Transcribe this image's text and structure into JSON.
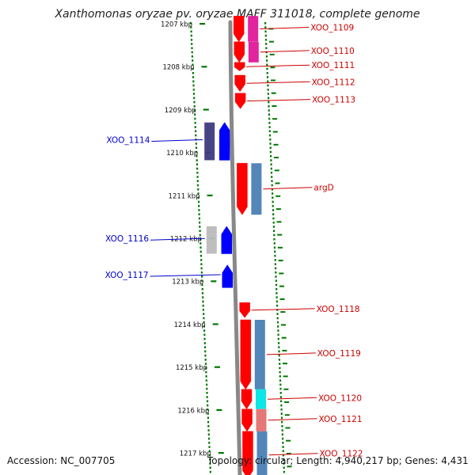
{
  "title": "Xanthomonas oryzae pv. oryzae MAFF 311018, complete genome",
  "accession": "Accession: NC_007705",
  "summary": "Topology: circular; Length: 4,940,217 bp; Genes: 4,431",
  "colors": {
    "forward_strand": "#ff0000",
    "reverse_strand": "#0000ff",
    "backbone": "#888888",
    "tick_dots": "#007700",
    "forward_label": "#cc0000",
    "reverse_label": "#0000cc"
  },
  "kbp_ticks": [
    {
      "label": "1207 kbp",
      "kbp": 1207
    },
    {
      "label": "1208 kbp",
      "kbp": 1208
    },
    {
      "label": "1209 kbp",
      "kbp": 1209
    },
    {
      "label": "1210 kbp",
      "kbp": 1210
    },
    {
      "label": "1211 kbp",
      "kbp": 1211
    },
    {
      "label": "1212 kbp",
      "kbp": 1212
    },
    {
      "label": "1213 kbp",
      "kbp": 1213
    },
    {
      "label": "1214 kbp",
      "kbp": 1214
    },
    {
      "label": "1215 kbp",
      "kbp": 1215
    },
    {
      "label": "1216 kbp",
      "kbp": 1216
    },
    {
      "label": "1217 kbp",
      "kbp": 1217
    }
  ],
  "genes": [
    {
      "name": "XOO_1109",
      "strand": "+",
      "start": 1206.82,
      "end": 1207.42,
      "companion_color": "#e0189a"
    },
    {
      "name": "XOO_1110",
      "strand": "+",
      "start": 1207.42,
      "end": 1207.9,
      "companion_color": "#e0189a"
    },
    {
      "name": "XOO_1111",
      "strand": "+",
      "start": 1207.9,
      "end": 1208.1,
      "companion_color": ""
    },
    {
      "name": "XOO_1112",
      "strand": "+",
      "start": 1208.2,
      "end": 1208.58,
      "companion_color": ""
    },
    {
      "name": "XOO_1113",
      "strand": "+",
      "start": 1208.62,
      "end": 1208.98,
      "companion_color": ""
    },
    {
      "name": "XOO_1114",
      "strand": "-",
      "start": 1209.3,
      "end": 1210.18,
      "companion_color": "#3d3a80"
    },
    {
      "name": "argD",
      "strand": "+",
      "start": 1210.25,
      "end": 1211.45,
      "companion_color": "#4a7fb5"
    },
    {
      "name": "XOO_1116",
      "strand": "-",
      "start": 1211.72,
      "end": 1212.36,
      "companion_color": "#bbbbbb"
    },
    {
      "name": "XOO_1117",
      "strand": "-",
      "start": 1212.62,
      "end": 1213.15,
      "companion_color": ""
    },
    {
      "name": "XOO_1118",
      "strand": "+",
      "start": 1213.5,
      "end": 1213.85,
      "companion_color": ""
    },
    {
      "name": "XOO_1119",
      "strand": "+",
      "start": 1213.9,
      "end": 1215.52,
      "companion_color": "#4a7fb5"
    },
    {
      "name": "XOO_1120",
      "strand": "+",
      "start": 1215.52,
      "end": 1215.98,
      "companion_color": "#00e5e5"
    },
    {
      "name": "XOO_1121",
      "strand": "+",
      "start": 1215.98,
      "end": 1216.5,
      "companion_color": "#e57070"
    },
    {
      "name": "XOO_1122",
      "strand": "+",
      "start": 1216.5,
      "end": 1217.6,
      "companion_color": "#4a7fb5"
    }
  ]
}
